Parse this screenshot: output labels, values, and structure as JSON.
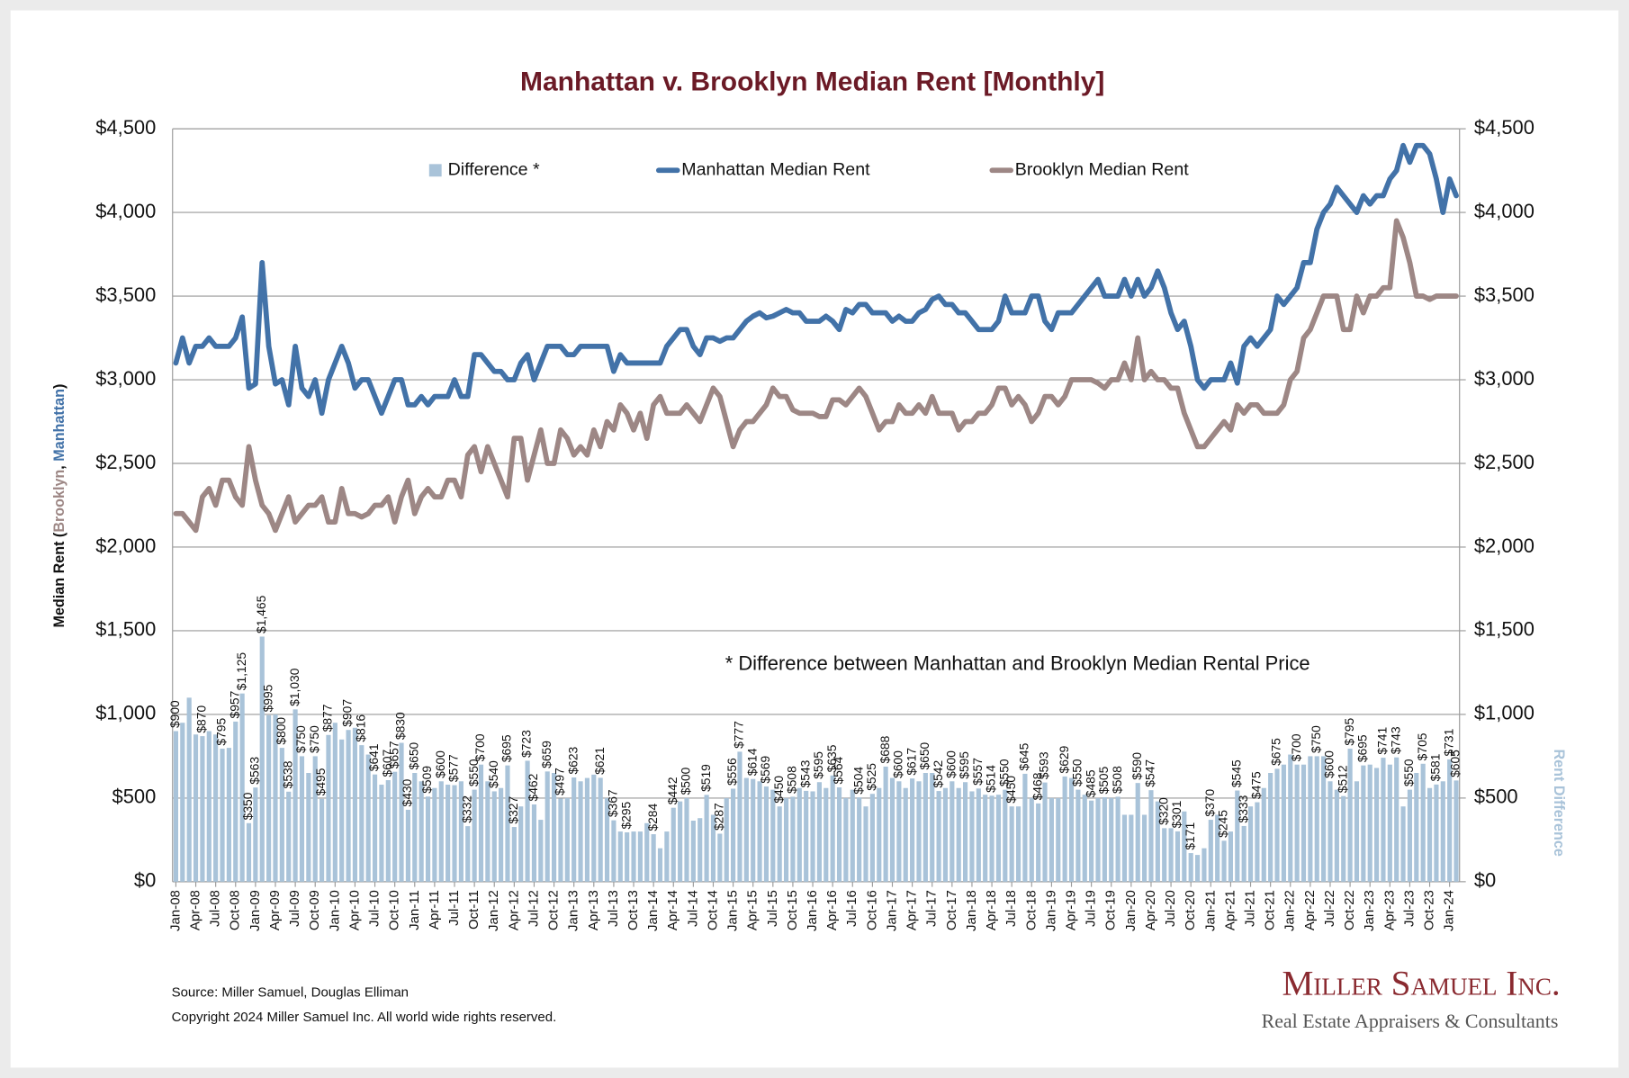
{
  "chart_data": {
    "type": "bar-line",
    "title": "Manhattan v. Brooklyn Median Rent [Monthly]",
    "ylabel": [
      "Median Rent (",
      "Brooklyn",
      ", ",
      "Manhattan",
      ")"
    ],
    "y2label": "Rent Difference",
    "annotation": "* Difference between Manhattan and Brooklyn Median Rental Price",
    "source": "Source: Miller Samuel, Douglas Elliman",
    "copyright": "Copyright 2024 Miller Samuel Inc.  All world wide rights reserved.",
    "logo": {
      "name": "Miller Samuel Inc.",
      "tagline": "Real Estate Appraisers & Consultants"
    },
    "legend_position": "top",
    "grid": true,
    "ylim": [
      0,
      4500
    ],
    "yticks": [
      {
        "value": 0,
        "label": "$0"
      },
      {
        "value": 500,
        "label": "$500"
      },
      {
        "value": 1000,
        "label": "$1,000"
      },
      {
        "value": 1500,
        "label": "$1,500"
      },
      {
        "value": 2000,
        "label": "$2,000"
      },
      {
        "value": 2500,
        "label": "$2,500"
      },
      {
        "value": 3000,
        "label": "$3,000"
      },
      {
        "value": 3500,
        "label": "$3,500"
      },
      {
        "value": 4000,
        "label": "$4,000"
      },
      {
        "value": 4500,
        "label": "$4,500"
      }
    ],
    "y2lim": [
      0,
      4500
    ],
    "y2ticks": [
      {
        "value": 0,
        "label": "$0"
      },
      {
        "value": 500,
        "label": "$500"
      },
      {
        "value": 1000,
        "label": "$1,000"
      },
      {
        "value": 1500,
        "label": "$1,500"
      },
      {
        "value": 2000,
        "label": "$2,000"
      },
      {
        "value": 2500,
        "label": "$2,500"
      },
      {
        "value": 3000,
        "label": "$3,000"
      },
      {
        "value": 3500,
        "label": "$3,500"
      },
      {
        "value": 4000,
        "label": "$4,000"
      },
      {
        "value": 4500,
        "label": "$4,500"
      }
    ],
    "categories": [
      "Jan-08",
      null,
      null,
      "Apr-08",
      null,
      null,
      "Jul-08",
      null,
      null,
      "Oct-08",
      null,
      null,
      "Jan-09",
      null,
      null,
      "Apr-09",
      null,
      null,
      "Jul-09",
      null,
      null,
      "Oct-09",
      null,
      null,
      "Jan-10",
      null,
      null,
      "Apr-10",
      null,
      null,
      "Jul-10",
      null,
      null,
      "Oct-10",
      null,
      null,
      "Jan-11",
      null,
      null,
      "Apr-11",
      null,
      null,
      "Jul-11",
      null,
      null,
      "Oct-11",
      null,
      null,
      "Jan-12",
      null,
      null,
      "Apr-12",
      null,
      null,
      "Jul-12",
      null,
      null,
      "Oct-12",
      null,
      null,
      "Jan-13",
      null,
      null,
      "Apr-13",
      null,
      null,
      "Jul-13",
      null,
      null,
      "Oct-13",
      null,
      null,
      "Jan-14",
      null,
      null,
      "Apr-14",
      null,
      null,
      "Jul-14",
      null,
      null,
      "Oct-14",
      null,
      null,
      "Jan-15",
      null,
      null,
      "Apr-15",
      null,
      null,
      "Jul-15",
      null,
      null,
      "Oct-15",
      null,
      null,
      "Jan-16",
      null,
      null,
      "Apr-16",
      null,
      null,
      "Jul-16",
      null,
      null,
      "Oct-16",
      null,
      null,
      "Jan-17",
      null,
      null,
      "Apr-17",
      null,
      null,
      "Jul-17",
      null,
      null,
      "Oct-17",
      null,
      null,
      "Jan-18",
      null,
      null,
      "Apr-18",
      null,
      null,
      "Jul-18",
      null,
      null,
      "Oct-18",
      null,
      null,
      "Jan-19",
      null,
      null,
      "Apr-19",
      null,
      null,
      "Jul-19",
      null,
      null,
      "Oct-19",
      null,
      null,
      "Jan-20",
      null,
      null,
      "Apr-20",
      null,
      null,
      "Jul-20",
      null,
      null,
      "Oct-20",
      null,
      null,
      "Jan-21",
      null,
      null,
      "Apr-21",
      null,
      null,
      "Jul-21",
      null,
      null,
      "Oct-21",
      null,
      null,
      "Jan-22",
      null,
      null,
      "Apr-22",
      null,
      null,
      "Jul-22",
      null,
      null,
      "Oct-22",
      null,
      null,
      "Jan-23",
      null,
      null,
      "Apr-23",
      null,
      null,
      "Jul-23",
      null,
      null,
      "Oct-23",
      null,
      null,
      "Jan-24",
      null
    ],
    "series": [
      {
        "name": "Difference *",
        "type": "bar",
        "axis": "y2",
        "color": "#a9c3d9",
        "values": [
          900,
          950,
          1100,
          880,
          870,
          900,
          880,
          795,
          800,
          957,
          1125,
          350,
          563,
          1465,
          995,
          1000,
          800,
          538,
          1030,
          750,
          650,
          750,
          495,
          877,
          950,
          850,
          907,
          920,
          816,
          760,
          641,
          580,
          607,
          657,
          830,
          430,
          650,
          600,
          509,
          560,
          600,
          580,
          577,
          600,
          332,
          550,
          700,
          600,
          540,
          560,
          695,
          327,
          450,
          723,
          462,
          370,
          659,
          650,
          497,
          500,
          623,
          600,
          620,
          640,
          621,
          500,
          367,
          300,
          295,
          300,
          300,
          350,
          284,
          200,
          300,
          442,
          480,
          500,
          365,
          380,
          519,
          400,
          287,
          500,
          556,
          777,
          620,
          614,
          600,
          569,
          550,
          450,
          500,
          508,
          560,
          543,
          540,
          595,
          560,
          635,
          564,
          500,
          550,
          504,
          450,
          525,
          560,
          688,
          620,
          600,
          560,
          617,
          600,
          650,
          650,
          542,
          560,
          600,
          560,
          595,
          540,
          557,
          520,
          514,
          520,
          550,
          450,
          450,
          645,
          500,
          468,
          593,
          500,
          500,
          629,
          620,
          550,
          520,
          485,
          500,
          505,
          500,
          508,
          400,
          400,
          590,
          400,
          547,
          480,
          320,
          320,
          301,
          420,
          171,
          160,
          200,
          370,
          400,
          245,
          300,
          545,
          333,
          450,
          475,
          560,
          650,
          675,
          700,
          760,
          700,
          700,
          750,
          750,
          750,
          600,
          550,
          512,
          795,
          600,
          695,
          700,
          680,
          741,
          700,
          743,
          450,
          550,
          650,
          705,
          560,
          581,
          600,
          731,
          605
        ],
        "value_labels": [
          "$900",
          null,
          null,
          null,
          "$870",
          null,
          null,
          "$795",
          null,
          "$957",
          "$1,125",
          "$350",
          "$563",
          "$1,465",
          "$995",
          null,
          "$800",
          "$538",
          "$1,030",
          "$750",
          null,
          "$750",
          "$495",
          "$877",
          null,
          null,
          "$907",
          null,
          "$816",
          null,
          "$641",
          null,
          "$607",
          "$657",
          "$830",
          "$430",
          "$650",
          null,
          "$509",
          null,
          "$600",
          null,
          "$577",
          null,
          "$332",
          "$550",
          "$700",
          null,
          "$540",
          null,
          "$695",
          "$327",
          null,
          "$723",
          "$462",
          null,
          "$659",
          null,
          "$497",
          null,
          "$623",
          null,
          null,
          null,
          "$621",
          null,
          "$367",
          null,
          "$295",
          null,
          null,
          null,
          "$284",
          null,
          null,
          "$442",
          null,
          "$500",
          null,
          null,
          "$519",
          null,
          "$287",
          null,
          "$556",
          "$777",
          null,
          "$614",
          null,
          "$569",
          null,
          "$450",
          null,
          "$508",
          null,
          "$543",
          null,
          "$595",
          null,
          "$635",
          "$564",
          null,
          null,
          "$504",
          null,
          "$525",
          null,
          "$688",
          null,
          "$600",
          null,
          "$617",
          null,
          "$650",
          null,
          "$542",
          null,
          "$600",
          null,
          "$595",
          null,
          "$557",
          null,
          "$514",
          null,
          "$550",
          "$450",
          null,
          "$645",
          null,
          "$468",
          "$593",
          null,
          null,
          "$629",
          null,
          "$550",
          null,
          "$485",
          null,
          "$505",
          null,
          "$508",
          null,
          null,
          "$590",
          null,
          "$547",
          null,
          "$320",
          null,
          "$301",
          null,
          "$171",
          null,
          null,
          "$370",
          null,
          "$245",
          null,
          "$545",
          "$333",
          null,
          "$475",
          null,
          null,
          "$675",
          null,
          null,
          "$700",
          null,
          null,
          "$750",
          null,
          "$600",
          null,
          "$512",
          "$795",
          null,
          "$695",
          null,
          null,
          "$741",
          null,
          "$743",
          null,
          "$550",
          null,
          "$705",
          null,
          "$581",
          null,
          "$731",
          "$605"
        ]
      },
      {
        "name": "Manhattan Median Rent",
        "type": "line",
        "color": "#4272a8",
        "values": [
          3100,
          3250,
          3100,
          3200,
          3200,
          3250,
          3200,
          3200,
          3200,
          3250,
          3375,
          2950,
          2975,
          3700,
          3200,
          2975,
          3000,
          2850,
          3200,
          2950,
          2900,
          3000,
          2800,
          3000,
          3100,
          3200,
          3100,
          2950,
          3000,
          3000,
          2900,
          2800,
          2900,
          3000,
          3000,
          2850,
          2850,
          2900,
          2850,
          2900,
          2900,
          2900,
          3000,
          2900,
          2900,
          3150,
          3150,
          3100,
          3050,
          3050,
          3000,
          3000,
          3100,
          3150,
          3000,
          3100,
          3200,
          3200,
          3200,
          3150,
          3150,
          3200,
          3200,
          3200,
          3200,
          3200,
          3050,
          3150,
          3100,
          3100,
          3100,
          3100,
          3100,
          3100,
          3200,
          3250,
          3300,
          3300,
          3200,
          3150,
          3250,
          3250,
          3230,
          3250,
          3250,
          3300,
          3350,
          3380,
          3400,
          3370,
          3380,
          3400,
          3420,
          3400,
          3400,
          3350,
          3350,
          3350,
          3380,
          3350,
          3300,
          3420,
          3400,
          3450,
          3450,
          3400,
          3400,
          3400,
          3350,
          3380,
          3350,
          3350,
          3400,
          3420,
          3480,
          3500,
          3450,
          3450,
          3400,
          3400,
          3350,
          3300,
          3300,
          3300,
          3350,
          3500,
          3400,
          3400,
          3400,
          3500,
          3500,
          3350,
          3300,
          3400,
          3400,
          3400,
          3450,
          3500,
          3550,
          3600,
          3500,
          3500,
          3500,
          3600,
          3500,
          3600,
          3500,
          3550,
          3650,
          3550,
          3400,
          3300,
          3350,
          3200,
          3000,
          2950,
          3000,
          3000,
          3000,
          3100,
          2980,
          3200,
          3250,
          3200,
          3250,
          3300,
          3500,
          3450,
          3500,
          3550,
          3700,
          3700,
          3900,
          4000,
          4050,
          4150,
          4100,
          4050,
          4000,
          4100,
          4050,
          4100,
          4100,
          4200,
          4250,
          4400,
          4300,
          4400,
          4400,
          4350,
          4200,
          4000,
          4200,
          4100
        ]
      },
      {
        "name": "Brooklyn Median Rent",
        "type": "line",
        "color": "#9d8785",
        "values": [
          2200,
          2200,
          2150,
          2100,
          2300,
          2350,
          2250,
          2400,
          2400,
          2300,
          2250,
          2600,
          2400,
          2250,
          2200,
          2100,
          2200,
          2300,
          2150,
          2200,
          2250,
          2250,
          2300,
          2150,
          2150,
          2350,
          2200,
          2200,
          2180,
          2200,
          2250,
          2250,
          2300,
          2150,
          2300,
          2400,
          2200,
          2300,
          2350,
          2300,
          2300,
          2400,
          2400,
          2300,
          2550,
          2600,
          2450,
          2600,
          2500,
          2400,
          2300,
          2650,
          2650,
          2400,
          2550,
          2700,
          2500,
          2500,
          2700,
          2650,
          2550,
          2600,
          2550,
          2700,
          2600,
          2750,
          2700,
          2850,
          2800,
          2700,
          2800,
          2650,
          2850,
          2900,
          2800,
          2800,
          2800,
          2850,
          2800,
          2750,
          2850,
          2950,
          2900,
          2750,
          2600,
          2700,
          2750,
          2750,
          2800,
          2850,
          2950,
          2900,
          2900,
          2820,
          2800,
          2800,
          2800,
          2780,
          2780,
          2880,
          2880,
          2850,
          2900,
          2950,
          2900,
          2800,
          2700,
          2750,
          2750,
          2850,
          2800,
          2800,
          2850,
          2800,
          2900,
          2800,
          2800,
          2800,
          2700,
          2750,
          2750,
          2800,
          2800,
          2850,
          2950,
          2950,
          2850,
          2900,
          2850,
          2750,
          2800,
          2900,
          2900,
          2850,
          2900,
          3000,
          3000,
          3000,
          3000,
          2980,
          2950,
          3000,
          3000,
          3100,
          3000,
          3250,
          3000,
          3050,
          3000,
          3000,
          2950,
          2950,
          2800,
          2700,
          2600,
          2600,
          2650,
          2700,
          2750,
          2700,
          2850,
          2800,
          2850,
          2850,
          2800,
          2800,
          2800,
          2850,
          3000,
          3050,
          3250,
          3300,
          3400,
          3500,
          3500,
          3500,
          3300,
          3300,
          3500,
          3400,
          3500,
          3500,
          3550,
          3550,
          3950,
          3850,
          3700,
          3500,
          3500,
          3480,
          3500,
          3500,
          3500,
          3500
        ]
      }
    ]
  }
}
